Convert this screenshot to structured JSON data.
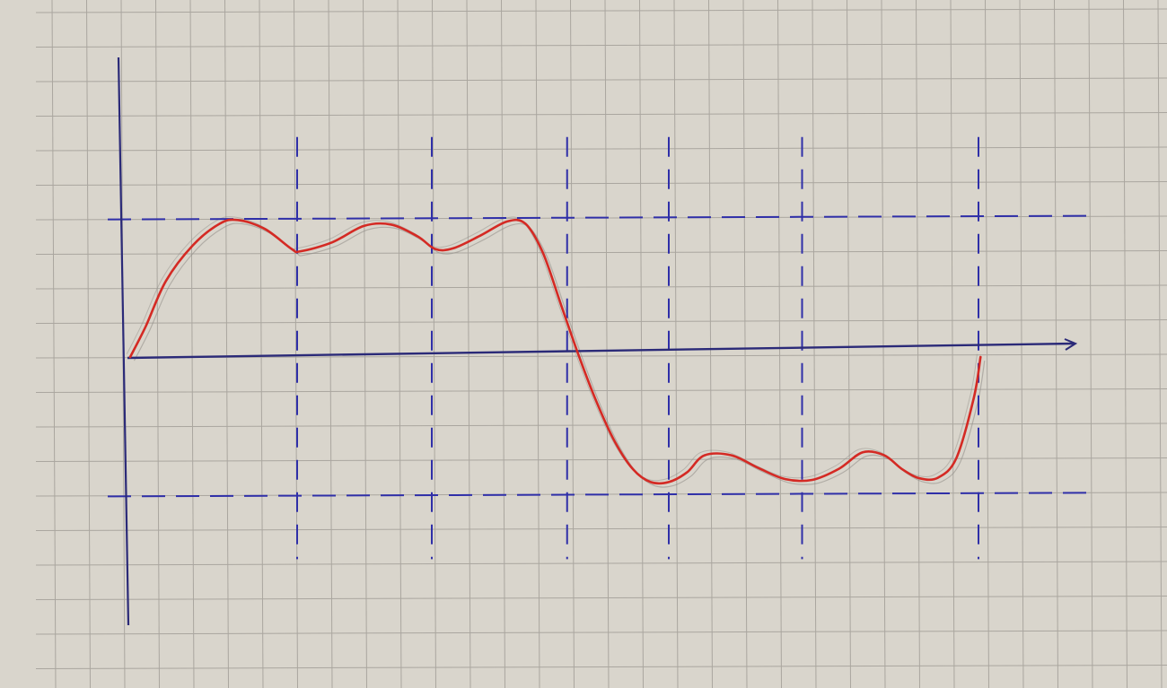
{
  "chart_data": {
    "type": "line",
    "title": "",
    "xlabel": "",
    "ylabel": "",
    "xlim": [
      0,
      13.3
    ],
    "ylim": [
      -3.8,
      4.4
    ],
    "grid": true,
    "legend": "none",
    "guides": {
      "horizontal_dashed": [
        1.86,
        -1.86
      ],
      "vertical_dashed": [
        2.48,
        4.48,
        6.49,
        8.0,
        9.98,
        12.6
      ]
    },
    "series": [
      {
        "name": "",
        "points": [
          [
            0.0,
            0.0
          ],
          [
            0.23,
            0.41
          ],
          [
            0.53,
            1.02
          ],
          [
            0.93,
            1.5
          ],
          [
            1.33,
            1.79
          ],
          [
            1.6,
            1.84
          ],
          [
            2.0,
            1.72
          ],
          [
            2.4,
            1.45
          ],
          [
            2.53,
            1.42
          ],
          [
            3.0,
            1.54
          ],
          [
            3.47,
            1.76
          ],
          [
            3.87,
            1.78
          ],
          [
            4.27,
            1.62
          ],
          [
            4.53,
            1.45
          ],
          [
            4.8,
            1.46
          ],
          [
            5.2,
            1.63
          ],
          [
            5.6,
            1.82
          ],
          [
            5.87,
            1.79
          ],
          [
            6.13,
            1.4
          ],
          [
            6.4,
            0.7
          ],
          [
            6.67,
            0.0
          ],
          [
            6.93,
            -0.61
          ],
          [
            7.2,
            -1.14
          ],
          [
            7.47,
            -1.51
          ],
          [
            7.73,
            -1.68
          ],
          [
            8.0,
            -1.68
          ],
          [
            8.27,
            -1.55
          ],
          [
            8.53,
            -1.32
          ],
          [
            8.93,
            -1.32
          ],
          [
            9.33,
            -1.49
          ],
          [
            9.73,
            -1.64
          ],
          [
            10.13,
            -1.65
          ],
          [
            10.53,
            -1.5
          ],
          [
            10.88,
            -1.28
          ],
          [
            11.2,
            -1.32
          ],
          [
            11.47,
            -1.51
          ],
          [
            11.73,
            -1.63
          ],
          [
            12.0,
            -1.62
          ],
          [
            12.27,
            -1.36
          ],
          [
            12.53,
            -0.55
          ],
          [
            12.63,
            0.0
          ]
        ]
      }
    ],
    "colors": {
      "paper": "#d9d5cc",
      "grid": "#aaa69f",
      "axis": "#2b2a78",
      "dash": "#2f2fa8",
      "curve": "#d42a24",
      "pencil": "#8f8c86"
    }
  }
}
